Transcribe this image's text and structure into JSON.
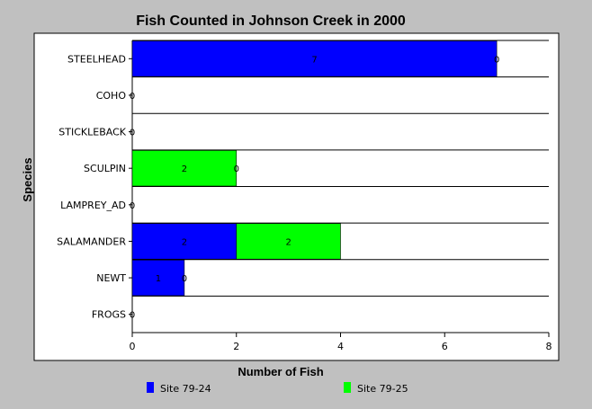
{
  "chart_data": {
    "type": "bar",
    "orientation": "horizontal",
    "stacked": true,
    "title": "Fish Counted in Johnson Creek in 2000",
    "xlabel": "Number of Fish",
    "ylabel": "Species",
    "xlim": [
      0,
      8
    ],
    "xticks": [
      "0",
      "2",
      "4",
      "6",
      "8"
    ],
    "grid": false,
    "legend_position": "bottom",
    "categories": [
      "STEELHEAD",
      "COHO",
      "STICKLEBACK",
      "SCULPIN",
      "LAMPREY_AD",
      "SALAMANDER",
      "NEWT",
      "FROGS"
    ],
    "series": [
      {
        "name": "Site 79-24",
        "color": "#0000ff",
        "values": [
          7,
          0,
          0,
          0,
          0,
          2,
          1,
          0
        ]
      },
      {
        "name": "Site 79-25",
        "color": "#00ff00",
        "values": [
          0,
          0,
          0,
          2,
          0,
          2,
          0,
          0
        ]
      }
    ]
  }
}
